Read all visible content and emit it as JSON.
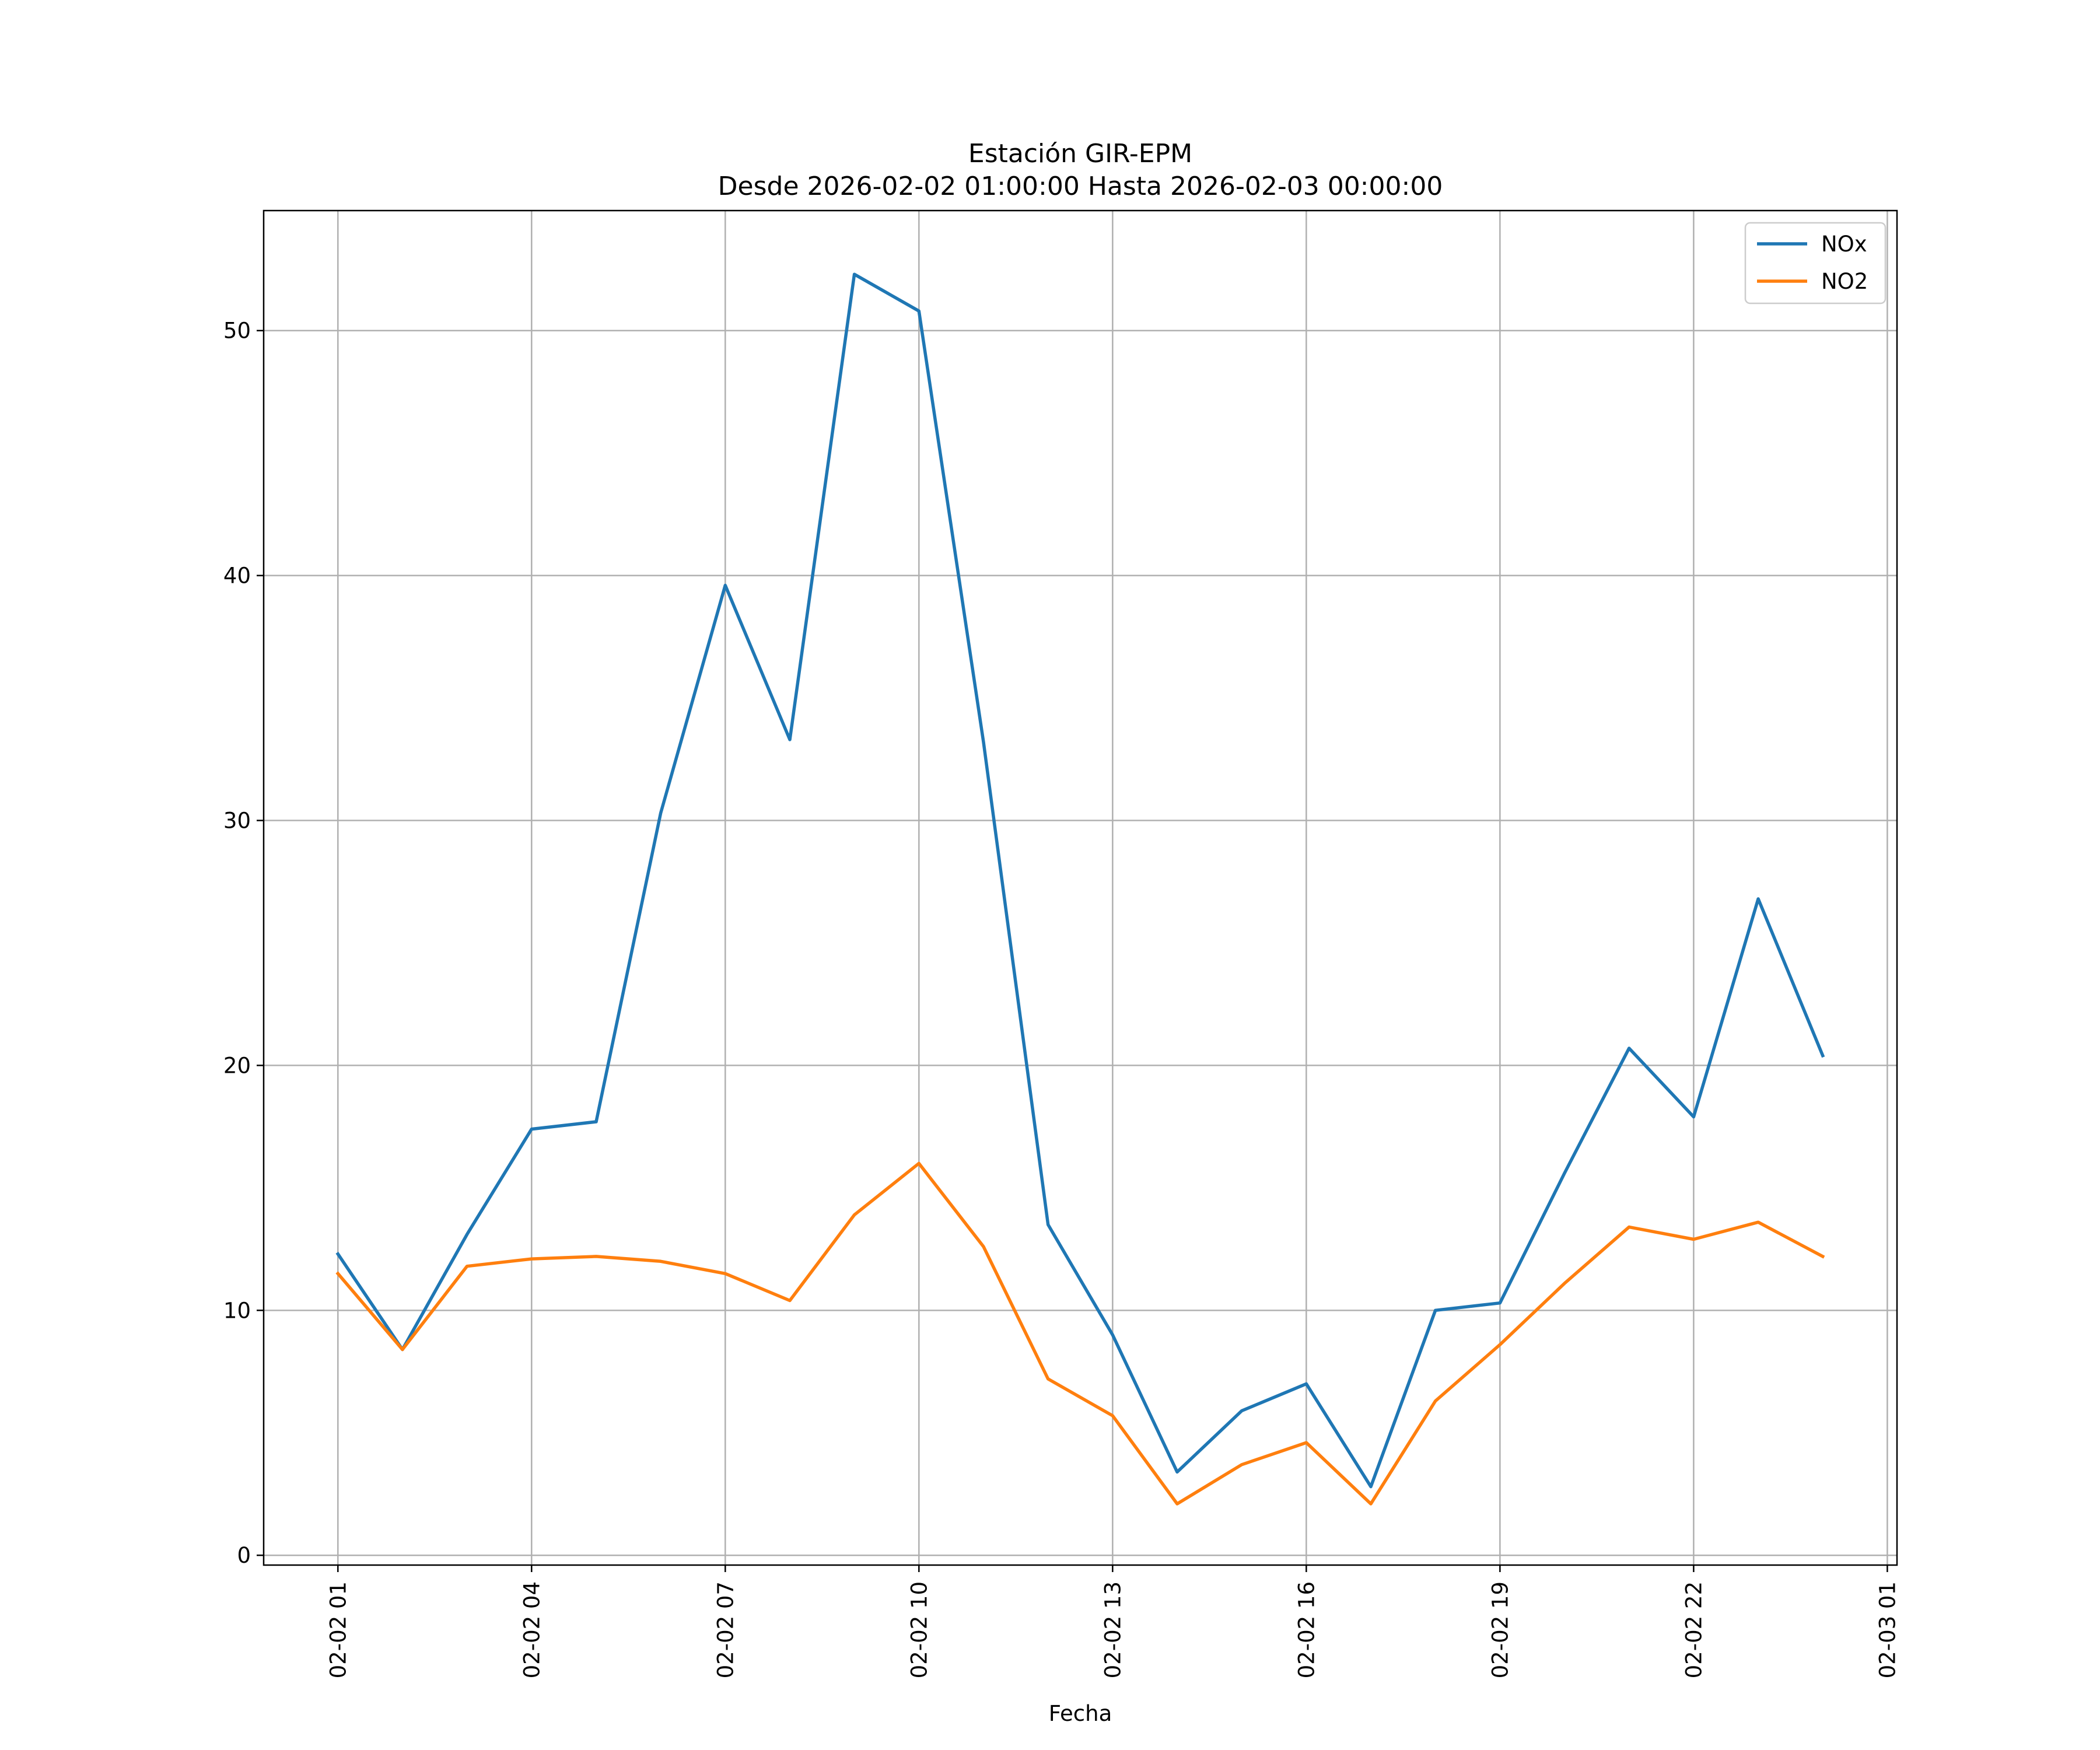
{
  "chart_data": {
    "type": "line",
    "title": "Estación GIR-EPM",
    "subtitle": "Desde 2026-02-02 01:00:00 Hasta 2026-02-03 00:00:00",
    "xlabel": "Fecha",
    "ylabel": "",
    "x": [
      "2026-02-02 01:00",
      "2026-02-02 02:00",
      "2026-02-02 03:00",
      "2026-02-02 04:00",
      "2026-02-02 05:00",
      "2026-02-02 06:00",
      "2026-02-02 07:00",
      "2026-02-02 08:00",
      "2026-02-02 09:00",
      "2026-02-02 10:00",
      "2026-02-02 11:00",
      "2026-02-02 12:00",
      "2026-02-02 13:00",
      "2026-02-02 14:00",
      "2026-02-02 15:00",
      "2026-02-02 16:00",
      "2026-02-02 17:00",
      "2026-02-02 18:00",
      "2026-02-02 19:00",
      "2026-02-02 20:00",
      "2026-02-02 21:00",
      "2026-02-02 22:00",
      "2026-02-02 23:00",
      "2026-02-03 00:00"
    ],
    "series": [
      {
        "name": "NOx",
        "color": "#1f77b4",
        "values": [
          12.3,
          8.4,
          13.1,
          17.4,
          17.7,
          30.3,
          39.6,
          33.3,
          52.3,
          50.8,
          33.2,
          13.5,
          9.0,
          3.4,
          5.9,
          7.0,
          2.8,
          10.0,
          10.3,
          15.6,
          20.7,
          17.9,
          26.8,
          20.4
        ]
      },
      {
        "name": "NO2",
        "color": "#ff7f0e",
        "values": [
          11.5,
          8.4,
          11.8,
          12.1,
          12.2,
          12.0,
          11.5,
          10.4,
          13.9,
          16.0,
          12.6,
          7.2,
          5.7,
          2.1,
          3.7,
          4.6,
          2.1,
          6.3,
          8.6,
          11.1,
          13.4,
          12.9,
          13.6,
          12.2
        ]
      }
    ],
    "xticks": [
      "2026-02-02 01:00",
      "2026-02-02 04:00",
      "2026-02-02 07:00",
      "2026-02-02 10:00",
      "2026-02-02 13:00",
      "2026-02-02 16:00",
      "2026-02-02 19:00",
      "2026-02-02 22:00",
      "2026-02-03 01:00"
    ],
    "xtick_labels": [
      "02-02 01",
      "02-02 04",
      "02-02 07",
      "02-02 10",
      "02-02 13",
      "02-02 16",
      "02-02 19",
      "02-02 22",
      "02-03 01"
    ],
    "xlim": [
      "2026-02-01 23:51",
      "2026-02-03 01:09"
    ],
    "yticks": [
      0,
      10,
      20,
      30,
      40,
      50
    ],
    "ytick_labels": [
      "0",
      "10",
      "20",
      "30",
      "40",
      "50"
    ],
    "ylim": [
      -0.4,
      54.9
    ],
    "grid": true,
    "legend_position": "top-right"
  }
}
